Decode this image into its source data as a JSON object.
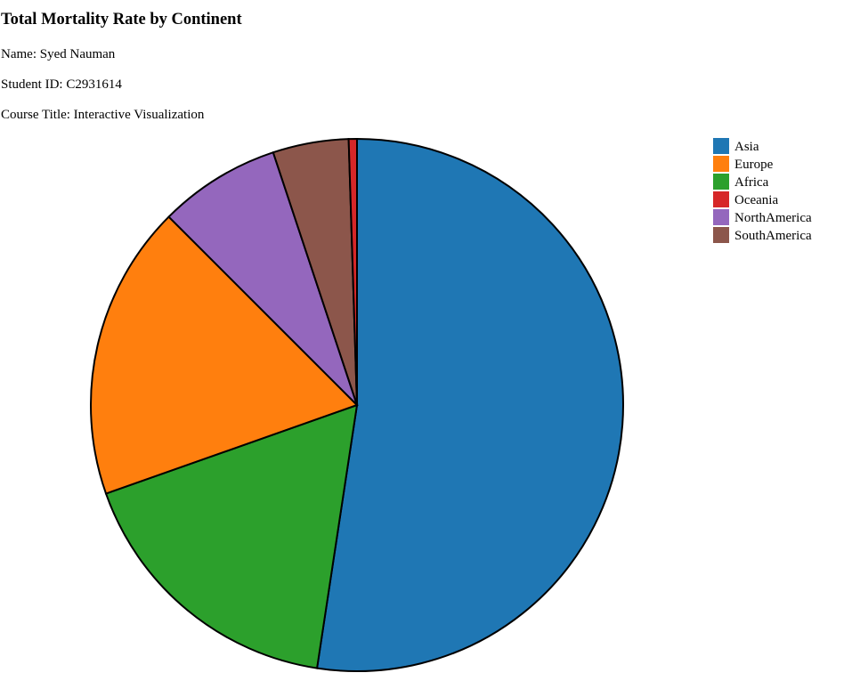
{
  "header": {
    "title": "Total Mortality Rate by Continent",
    "name_line": "Name: Syed Nauman",
    "student_id_line": "Student ID: C2931614",
    "course_line": "Course Title: Interactive Visualization"
  },
  "chart_data": {
    "type": "pie",
    "title": "Total Mortality Rate by Continent",
    "categories": [
      "Asia",
      "Europe",
      "Africa",
      "Oceania",
      "NorthAmerica",
      "SouthAmerica"
    ],
    "values": [
      52.4,
      17.9,
      17.2,
      0.5,
      7.4,
      4.6
    ],
    "slice_order": [
      "Asia",
      "Africa",
      "Europe",
      "NorthAmerica",
      "SouthAmerica",
      "Oceania"
    ],
    "colors": {
      "Asia": "#1f77b4",
      "Europe": "#ff7f0e",
      "Africa": "#2ca02c",
      "Oceania": "#d62728",
      "NorthAmerica": "#9467bd",
      "SouthAmerica": "#8c564b"
    },
    "legend_position": "top-right",
    "slice_stroke_color": "#000000"
  }
}
